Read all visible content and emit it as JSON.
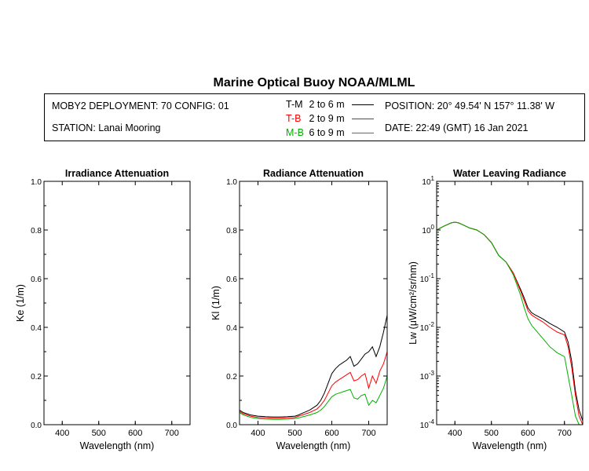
{
  "title": "Marine Optical Buoy NOAA/MLML",
  "info": {
    "deployment": "MOBY2 DEPLOYMENT: 70 CONFIG: 01",
    "station": "STATION: Lanai Mooring",
    "position": "POSITION: 20° 49.54' N   157° 11.38' W",
    "date": "DATE: 22:49 (GMT) 16 Jan 2021"
  },
  "legend": [
    {
      "code": "T-M",
      "range": "2 to 6  m",
      "color": "#000000"
    },
    {
      "code": "T-B",
      "range": "2 to 9  m",
      "color": "#ff0000"
    },
    {
      "code": "M-B",
      "range": "6 to 9  m",
      "color": "#00b000"
    }
  ],
  "chart_data": [
    {
      "type": "line",
      "title": "Irradiance Attenuation",
      "xlabel": "Wavelength (nm)",
      "ylabel": "Ke  (1/m)",
      "xlim": [
        350,
        750
      ],
      "ylim": [
        0,
        1
      ],
      "xticks": [
        400,
        500,
        600,
        700
      ],
      "yticks": [
        "0.0",
        "0.2",
        "0.4",
        "0.6",
        "0.8",
        "1.0"
      ],
      "series": []
    },
    {
      "type": "line",
      "title": "Radiance Attenuation",
      "xlabel": "Wavelength (nm)",
      "ylabel": "Kl  (1/m)",
      "xlim": [
        350,
        750
      ],
      "ylim": [
        0,
        1
      ],
      "xticks": [
        400,
        500,
        600,
        700
      ],
      "yticks": [
        "0.0",
        "0.2",
        "0.4",
        "0.6",
        "0.8",
        "1.0"
      ],
      "series": [
        {
          "name": "T-M",
          "color": "#000000",
          "x": [
            350,
            360,
            380,
            400,
            420,
            440,
            460,
            480,
            500,
            510,
            520,
            540,
            560,
            570,
            580,
            590,
            600,
            610,
            620,
            630,
            640,
            650,
            660,
            670,
            680,
            690,
            700,
            710,
            720,
            730,
            740,
            750
          ],
          "y": [
            0.06,
            0.05,
            0.04,
            0.035,
            0.033,
            0.032,
            0.032,
            0.033,
            0.035,
            0.04,
            0.047,
            0.06,
            0.08,
            0.1,
            0.13,
            0.17,
            0.21,
            0.23,
            0.245,
            0.255,
            0.265,
            0.28,
            0.24,
            0.25,
            0.27,
            0.29,
            0.3,
            0.32,
            0.28,
            0.32,
            0.38,
            0.45
          ]
        },
        {
          "name": "T-B",
          "color": "#ff0000",
          "x": [
            350,
            360,
            380,
            400,
            420,
            440,
            460,
            480,
            500,
            510,
            520,
            540,
            560,
            570,
            580,
            590,
            600,
            610,
            620,
            630,
            640,
            650,
            660,
            670,
            680,
            690,
            700,
            710,
            720,
            730,
            740,
            750
          ],
          "y": [
            0.055,
            0.045,
            0.035,
            0.03,
            0.028,
            0.027,
            0.027,
            0.028,
            0.03,
            0.035,
            0.04,
            0.05,
            0.065,
            0.08,
            0.1,
            0.13,
            0.16,
            0.175,
            0.185,
            0.195,
            0.205,
            0.215,
            0.18,
            0.185,
            0.2,
            0.21,
            0.15,
            0.2,
            0.17,
            0.22,
            0.25,
            0.3
          ]
        },
        {
          "name": "M-B",
          "color": "#00b000",
          "x": [
            350,
            360,
            380,
            400,
            420,
            440,
            460,
            480,
            500,
            510,
            520,
            540,
            560,
            570,
            580,
            590,
            600,
            610,
            620,
            630,
            640,
            650,
            660,
            670,
            680,
            690,
            700,
            710,
            720,
            730,
            740,
            750
          ],
          "y": [
            0.05,
            0.04,
            0.03,
            0.025,
            0.023,
            0.022,
            0.022,
            0.023,
            0.025,
            0.028,
            0.032,
            0.04,
            0.05,
            0.06,
            0.075,
            0.095,
            0.115,
            0.125,
            0.13,
            0.135,
            0.14,
            0.145,
            0.11,
            0.105,
            0.12,
            0.125,
            0.08,
            0.1,
            0.09,
            0.12,
            0.15,
            0.2
          ]
        }
      ]
    },
    {
      "type": "line",
      "title": "Water Leaving Radiance",
      "xlabel": "Wavelength (nm)",
      "ylabel": "Lw  (μW/cm²/sr/nm)",
      "xlim": [
        350,
        750
      ],
      "ylim": [
        0.0001,
        10
      ],
      "yscale": "log",
      "xticks": [
        400,
        500,
        600,
        700
      ],
      "ytick_values": [
        0.0001,
        0.001,
        0.01,
        0.1,
        1,
        10
      ],
      "series": [
        {
          "name": "T-M",
          "color": "#000000",
          "x": [
            350,
            370,
            390,
            400,
            410,
            420,
            440,
            460,
            480,
            500,
            520,
            540,
            560,
            580,
            590,
            600,
            610,
            620,
            640,
            660,
            680,
            700,
            710,
            720,
            730,
            740,
            750
          ],
          "y": [
            1.0,
            1.2,
            1.4,
            1.45,
            1.4,
            1.3,
            1.1,
            1.0,
            0.8,
            0.55,
            0.3,
            0.22,
            0.13,
            0.06,
            0.04,
            0.025,
            0.02,
            0.018,
            0.015,
            0.012,
            0.01,
            0.008,
            0.005,
            0.002,
            0.0005,
            0.0002,
            0.00012
          ]
        },
        {
          "name": "T-B",
          "color": "#ff0000",
          "x": [
            350,
            370,
            390,
            400,
            410,
            420,
            440,
            460,
            480,
            500,
            520,
            540,
            560,
            580,
            590,
            600,
            610,
            620,
            640,
            660,
            680,
            700,
            710,
            720,
            730,
            740,
            750
          ],
          "y": [
            1.0,
            1.2,
            1.4,
            1.45,
            1.4,
            1.3,
            1.1,
            1.0,
            0.8,
            0.55,
            0.3,
            0.22,
            0.13,
            0.055,
            0.035,
            0.022,
            0.018,
            0.016,
            0.013,
            0.01,
            0.008,
            0.007,
            0.004,
            0.0015,
            0.0004,
            0.00015,
            0.0001
          ]
        },
        {
          "name": "M-B",
          "color": "#00b000",
          "x": [
            350,
            370,
            390,
            400,
            410,
            420,
            440,
            460,
            480,
            500,
            520,
            540,
            560,
            580,
            590,
            600,
            610,
            620,
            640,
            660,
            680,
            700,
            710,
            720,
            730,
            740,
            750
          ],
          "y": [
            1.0,
            1.2,
            1.4,
            1.45,
            1.4,
            1.3,
            1.1,
            1.0,
            0.8,
            0.55,
            0.3,
            0.22,
            0.12,
            0.045,
            0.025,
            0.015,
            0.011,
            0.009,
            0.006,
            0.004,
            0.003,
            0.0025,
            0.001,
            0.0004,
            0.00015,
            0.0001,
            0.0001
          ]
        }
      ]
    }
  ]
}
